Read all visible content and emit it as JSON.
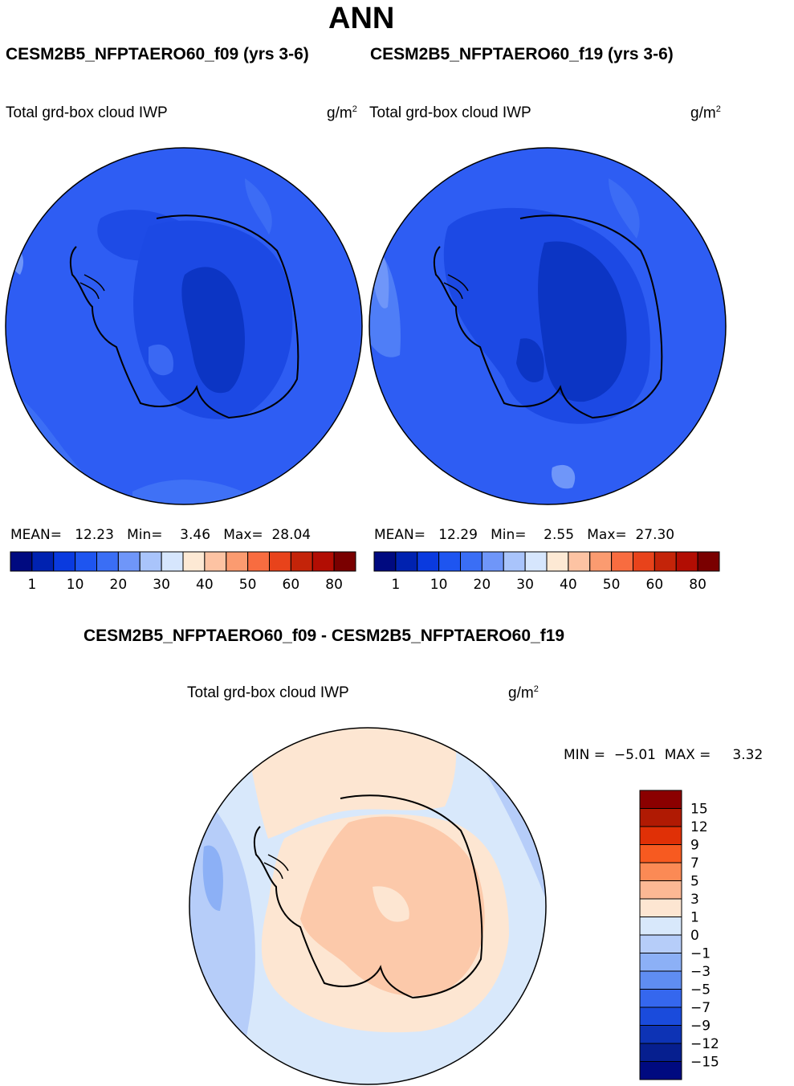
{
  "header": {
    "title": "ANN",
    "case_left": "CESM2B5_NFPTAERO60_f09 (yrs 3-6)",
    "case_right": "CESM2B5_NFPTAERO60_f19 (yrs 3-6)",
    "diff_title": "CESM2B5_NFPTAERO60_f09 - CESM2B5_NFPTAERO60_f19"
  },
  "variable": {
    "name": "Total grd-box cloud IWP",
    "unit_base": "g/m",
    "unit_exp": "2"
  },
  "panels": [
    {
      "id": "f09",
      "stats": {
        "mean_label": "MEAN=",
        "mean": "12.23",
        "min_label": "Min=",
        "min": "3.46",
        "max_label": "Max=",
        "max": "28.04"
      }
    },
    {
      "id": "f19",
      "stats": {
        "mean_label": "MEAN=",
        "mean": "12.29",
        "min_label": "Min=",
        "min": "2.55",
        "max_label": "Max=",
        "max": "27.30"
      }
    }
  ],
  "colorbar_abs": {
    "colors": [
      "#000a80",
      "#0022b0",
      "#0a3adf",
      "#1e55f0",
      "#3a6ef5",
      "#6f96f9",
      "#a9c4fb",
      "#d6e6fd",
      "#fde9d4",
      "#fdc3a3",
      "#fb9b70",
      "#f86c40",
      "#e8431b",
      "#c42409",
      "#b20d03",
      "#7a0000"
    ],
    "labels": [
      "1",
      "10",
      "20",
      "30",
      "40",
      "50",
      "60",
      "80"
    ]
  },
  "diff_stats": {
    "min_label": "MIN =",
    "min": "−5.01",
    "max_label": "MAX =",
    "max": "3.32"
  },
  "colorbar_diff": {
    "colors": [
      "#8b0000",
      "#b01a03",
      "#e03006",
      "#f75a20",
      "#fb8a55",
      "#fcb894",
      "#fde6d2",
      "#d8e8fb",
      "#b6cdf9",
      "#8cb0f6",
      "#5f8df2",
      "#3567ee",
      "#1a4bdc",
      "#0d33b5",
      "#061f8f",
      "#000a80"
    ],
    "labels": [
      "15",
      "12",
      "9",
      "7",
      "5",
      "3",
      "1",
      "0",
      "−1",
      "−3",
      "−5",
      "−7",
      "−9",
      "−12",
      "−15"
    ]
  }
}
